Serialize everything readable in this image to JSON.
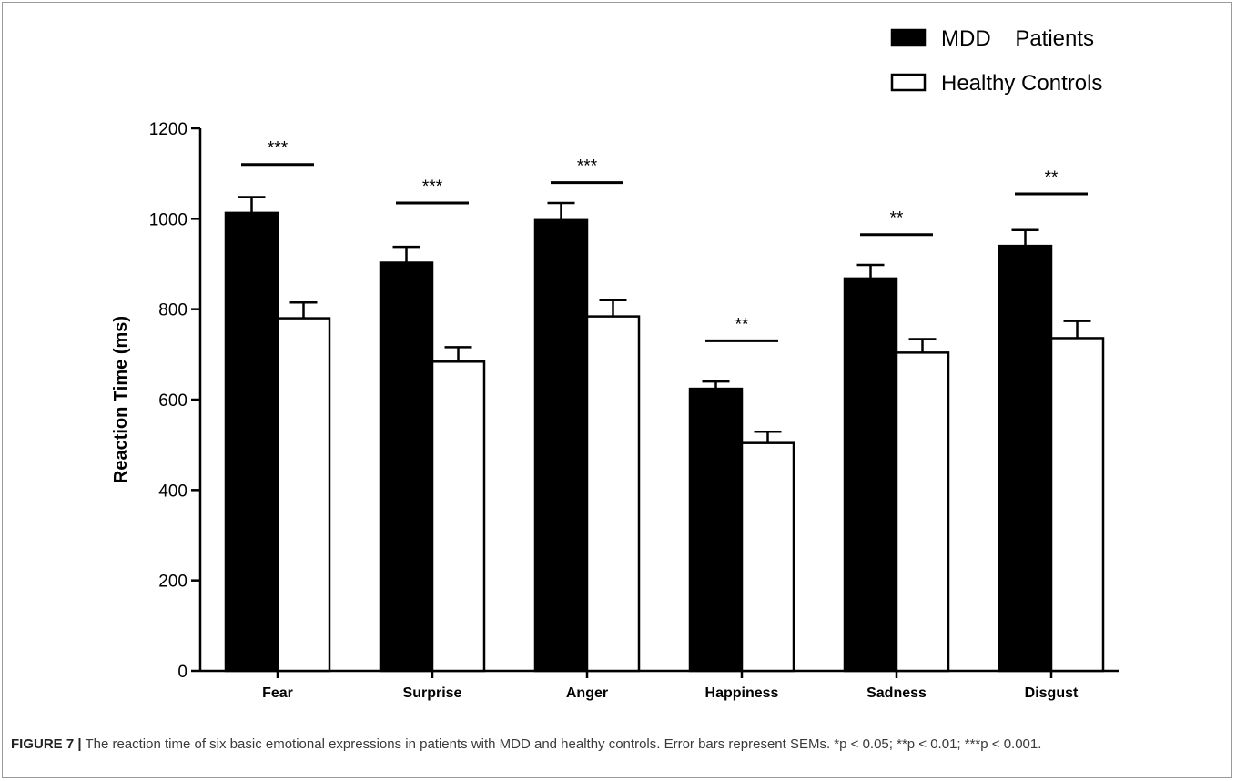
{
  "chart_data": {
    "type": "bar",
    "categories": [
      "Fear",
      "Surprise",
      "Anger",
      "Happiness",
      "Sadness",
      "Disgust"
    ],
    "series": [
      {
        "name": "MDD    Patients",
        "color": "#000000",
        "values": [
          1013,
          903,
          997,
          624,
          868,
          940
        ],
        "errors": [
          35,
          35,
          38,
          16,
          30,
          35
        ]
      },
      {
        "name": "Healthy Controls",
        "color": "#ffffff",
        "values": [
          780,
          684,
          784,
          504,
          704,
          736
        ],
        "errors": [
          35,
          32,
          36,
          25,
          30,
          38
        ]
      }
    ],
    "significance": [
      {
        "label": "***",
        "y": 1120
      },
      {
        "label": "***",
        "y": 1035
      },
      {
        "label": "***",
        "y": 1080
      },
      {
        "label": "**",
        "y": 730
      },
      {
        "label": "**",
        "y": 965
      },
      {
        "label": "**",
        "y": 1055
      }
    ],
    "ylabel": "Reaction Time (ms)",
    "xlabel": "",
    "ylim": [
      0,
      1200
    ],
    "yticks": [
      0,
      200,
      400,
      600,
      800,
      1000,
      1200
    ],
    "legend_position": "top-right",
    "grid": false
  },
  "caption": {
    "label": "FIGURE 7 |",
    "text": " The reaction time of six basic emotional expressions in patients with MDD and healthy controls. Error bars represent SEMs. *p < 0.05; **p < 0.01; ***p < 0.001."
  }
}
